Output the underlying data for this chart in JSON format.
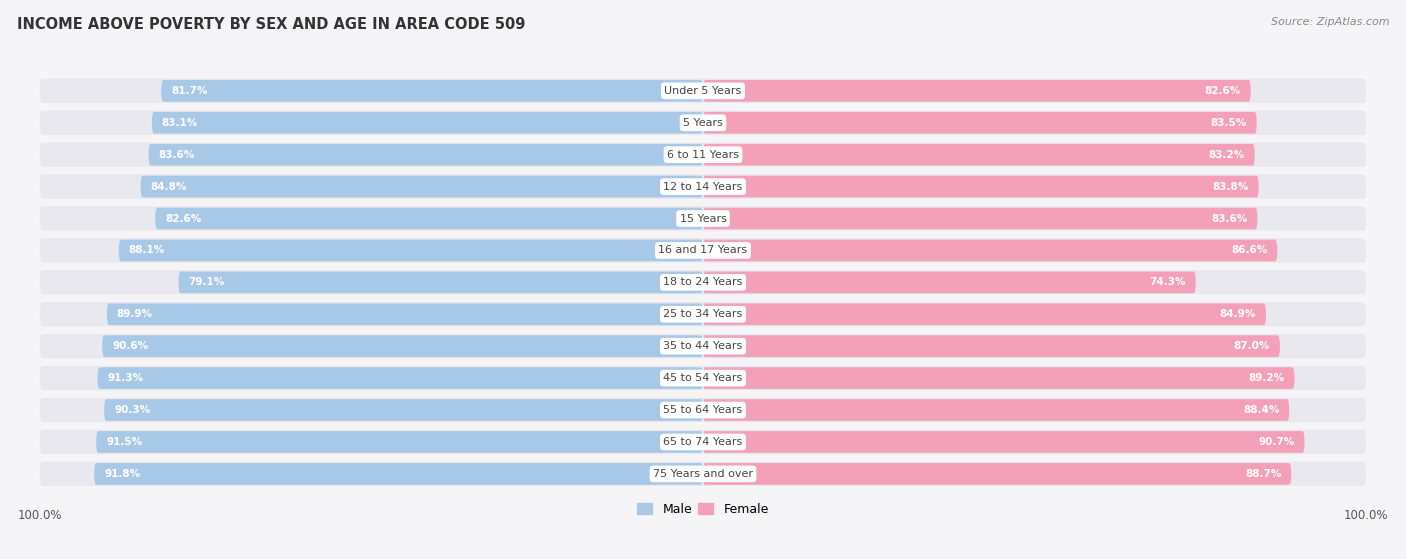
{
  "title": "INCOME ABOVE POVERTY BY SEX AND AGE IN AREA CODE 509",
  "source": "Source: ZipAtlas.com",
  "categories": [
    "Under 5 Years",
    "5 Years",
    "6 to 11 Years",
    "12 to 14 Years",
    "15 Years",
    "16 and 17 Years",
    "18 to 24 Years",
    "25 to 34 Years",
    "35 to 44 Years",
    "45 to 54 Years",
    "55 to 64 Years",
    "65 to 74 Years",
    "75 Years and over"
  ],
  "male_values": [
    81.7,
    83.1,
    83.6,
    84.8,
    82.6,
    88.1,
    79.1,
    89.9,
    90.6,
    91.3,
    90.3,
    91.5,
    91.8
  ],
  "female_values": [
    82.6,
    83.5,
    83.2,
    83.8,
    83.6,
    86.6,
    74.3,
    84.9,
    87.0,
    89.2,
    88.4,
    90.7,
    88.7
  ],
  "male_color": "#a8c8e8",
  "female_color": "#f4a0b8",
  "track_color": "#e8e8ee",
  "male_label": "Male",
  "female_label": "Female",
  "background_color": "#f5f5f7",
  "bar_background": "#ffffff",
  "max_val": 100.0,
  "title_fontsize": 10.5,
  "source_fontsize": 8,
  "value_fontsize": 7.5,
  "category_fontsize": 8
}
